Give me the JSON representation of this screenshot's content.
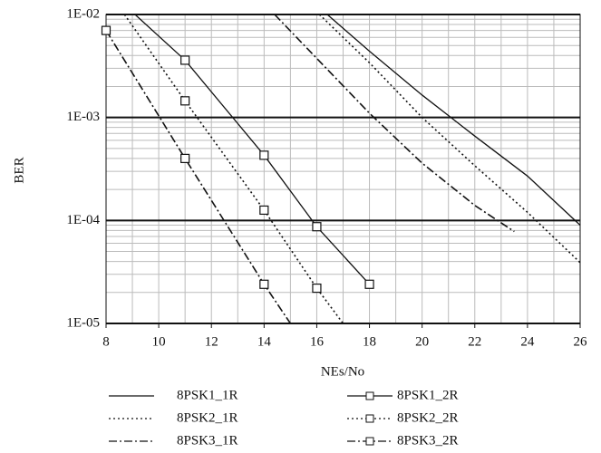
{
  "chart_data": {
    "type": "line",
    "x_label": "NEs/No",
    "y_label": "BER",
    "log_y": true,
    "grid": true,
    "xlim": [
      8,
      26
    ],
    "xticks": [
      8,
      10,
      12,
      14,
      16,
      18,
      20,
      22,
      24,
      26
    ],
    "ylim": [
      1e-05,
      0.01
    ],
    "yticks": [
      {
        "value": 1e-05,
        "label": "1E-05"
      },
      {
        "value": 0.0001,
        "label": "1E-04"
      },
      {
        "value": 0.001,
        "label": "1E-03"
      },
      {
        "value": 0.01,
        "label": "1E-02"
      }
    ],
    "series": [
      {
        "name": "8PSK1_1R",
        "color": "#111111",
        "dash": "solid",
        "marker": "none",
        "x": [
          16.4,
          18,
          20,
          22,
          24,
          26
        ],
        "values": [
          0.01,
          0.0044,
          0.00165,
          0.00066,
          0.00027,
          9e-05
        ]
      },
      {
        "name": "8PSK1_2R",
        "color": "#111111",
        "dash": "solid",
        "marker": "square",
        "x": [
          9.1,
          11,
          14,
          16,
          18
        ],
        "values": [
          0.01,
          0.0036,
          0.00043,
          8.7e-05,
          2.4e-05
        ]
      },
      {
        "name": "8PSK2_1R",
        "color": "#111111",
        "dash": "dotted",
        "marker": "none",
        "x": [
          16.1,
          18,
          20,
          22,
          24,
          26
        ],
        "values": [
          0.01,
          0.0034,
          0.001,
          0.00034,
          0.00012,
          3.9e-05
        ]
      },
      {
        "name": "8PSK2_2R",
        "color": "#111111",
        "dash": "dotted",
        "marker": "square",
        "x": [
          8.7,
          11,
          14,
          16,
          17
        ],
        "values": [
          0.01,
          0.00145,
          0.000126,
          2.2e-05,
          1e-05
        ]
      },
      {
        "name": "8PSK3_1R",
        "color": "#111111",
        "dash": "dashdot",
        "marker": "none",
        "x": [
          14.4,
          18,
          20,
          22,
          23.5
        ],
        "values": [
          0.01,
          0.0011,
          0.00036,
          0.00014,
          7.8e-05
        ]
      },
      {
        "name": "8PSK3_2R",
        "color": "#111111",
        "dash": "dashdot",
        "marker": "square",
        "x": [
          8,
          11,
          14,
          15
        ],
        "values": [
          0.007,
          0.0004,
          2.4e-05,
          1e-05
        ]
      }
    ]
  }
}
